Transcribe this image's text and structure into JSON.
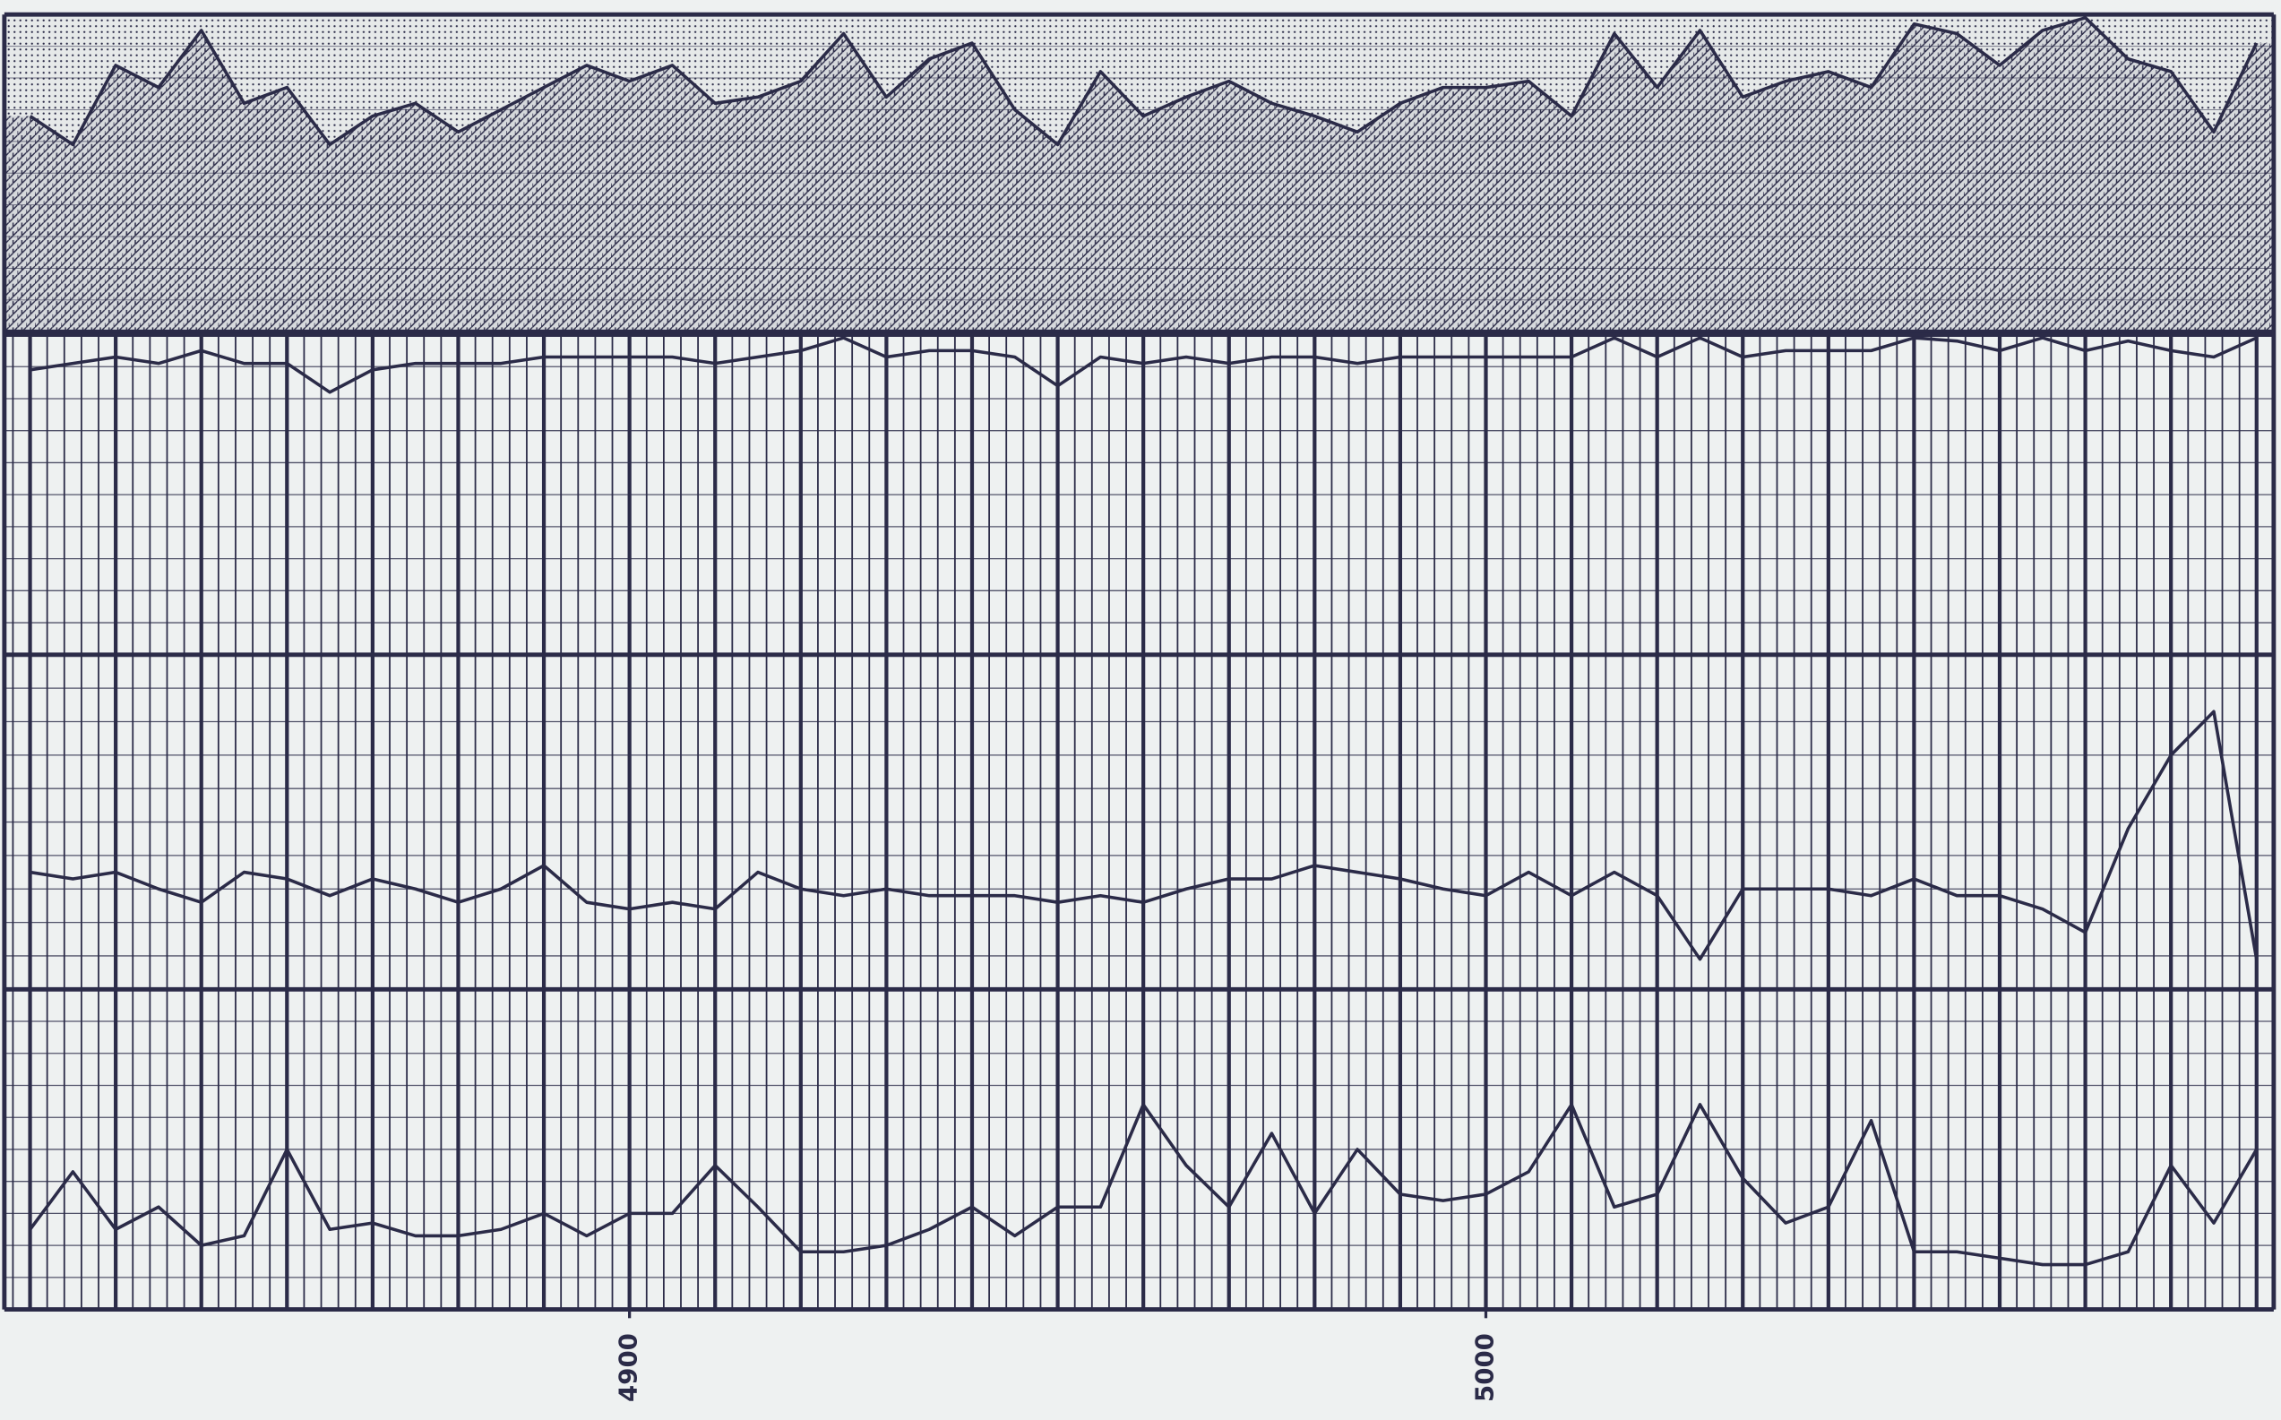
{
  "chart_data": {
    "type": "line",
    "x": [
      4830,
      4835,
      4840,
      4845,
      4850,
      4855,
      4860,
      4865,
      4870,
      4875,
      4880,
      4885,
      4890,
      4895,
      4900,
      4905,
      4910,
      4915,
      4920,
      4925,
      4930,
      4935,
      4940,
      4945,
      4950,
      4955,
      4960,
      4965,
      4970,
      4975,
      4980,
      4985,
      4990,
      4995,
      5000,
      5005,
      5010,
      5015,
      5020,
      5025,
      5030,
      5035,
      5040,
      5045,
      5050,
      5055,
      5060,
      5065,
      5070,
      5075,
      5080,
      5085,
      5090
    ],
    "xlim": [
      4827,
      5092
    ],
    "xticks": [
      4900,
      5000
    ],
    "xgrid_step": 2,
    "xgrid_major_step": 10,
    "ylim": [
      0,
      100
    ],
    "yticks": [
      0,
      10,
      20,
      30,
      40,
      50,
      60,
      70,
      80,
      90,
      100
    ],
    "grid": true,
    "series": [
      {
        "color": "#2b2b48",
        "values": [
          68,
          59,
          84,
          77,
          95,
          72,
          77,
          59,
          68,
          72,
          63,
          70,
          77,
          84,
          79,
          84,
          72,
          74,
          79,
          94,
          74,
          86,
          91,
          70,
          59,
          82,
          68,
          74,
          79,
          72,
          68,
          63,
          72,
          77,
          77,
          79,
          68,
          94,
          77,
          95,
          74,
          79,
          82,
          77,
          97,
          94,
          84,
          95,
          99,
          86,
          82,
          63,
          91
        ]
      },
      {
        "color": "#2b2b48",
        "values": [
          89,
          91,
          93,
          91,
          95,
          91,
          91,
          82,
          89,
          91,
          91,
          91,
          93,
          93,
          93,
          93,
          91,
          93,
          95,
          99,
          93,
          95,
          95,
          93,
          84,
          93,
          91,
          93,
          91,
          93,
          93,
          91,
          93,
          93,
          93,
          93,
          93,
          99,
          93,
          99,
          93,
          95,
          95,
          95,
          99,
          98,
          95,
          99,
          95,
          98,
          95,
          93,
          99
        ]
      },
      {
        "color": "#2b2b48",
        "values": [
          35,
          33,
          35,
          30,
          26,
          35,
          33,
          28,
          33,
          30,
          26,
          30,
          37,
          26,
          24,
          26,
          24,
          35,
          30,
          28,
          30,
          28,
          28,
          28,
          26,
          28,
          26,
          30,
          33,
          33,
          37,
          35,
          33,
          30,
          28,
          35,
          28,
          35,
          28,
          9,
          30,
          30,
          30,
          28,
          33,
          28,
          28,
          24,
          17,
          48,
          70,
          83,
          9
        ]
      },
      {
        "color": "#2b2b48",
        "values": [
          25,
          43,
          25,
          32,
          20,
          23,
          50,
          25,
          27,
          23,
          23,
          25,
          30,
          23,
          30,
          30,
          45,
          32,
          18,
          18,
          20,
          25,
          32,
          23,
          32,
          32,
          64,
          45,
          32,
          55,
          30,
          50,
          36,
          34,
          36,
          43,
          64,
          32,
          36,
          64,
          41,
          27,
          32,
          59,
          18,
          18,
          16,
          14,
          14,
          18,
          45,
          27,
          50
        ]
      }
    ]
  }
}
